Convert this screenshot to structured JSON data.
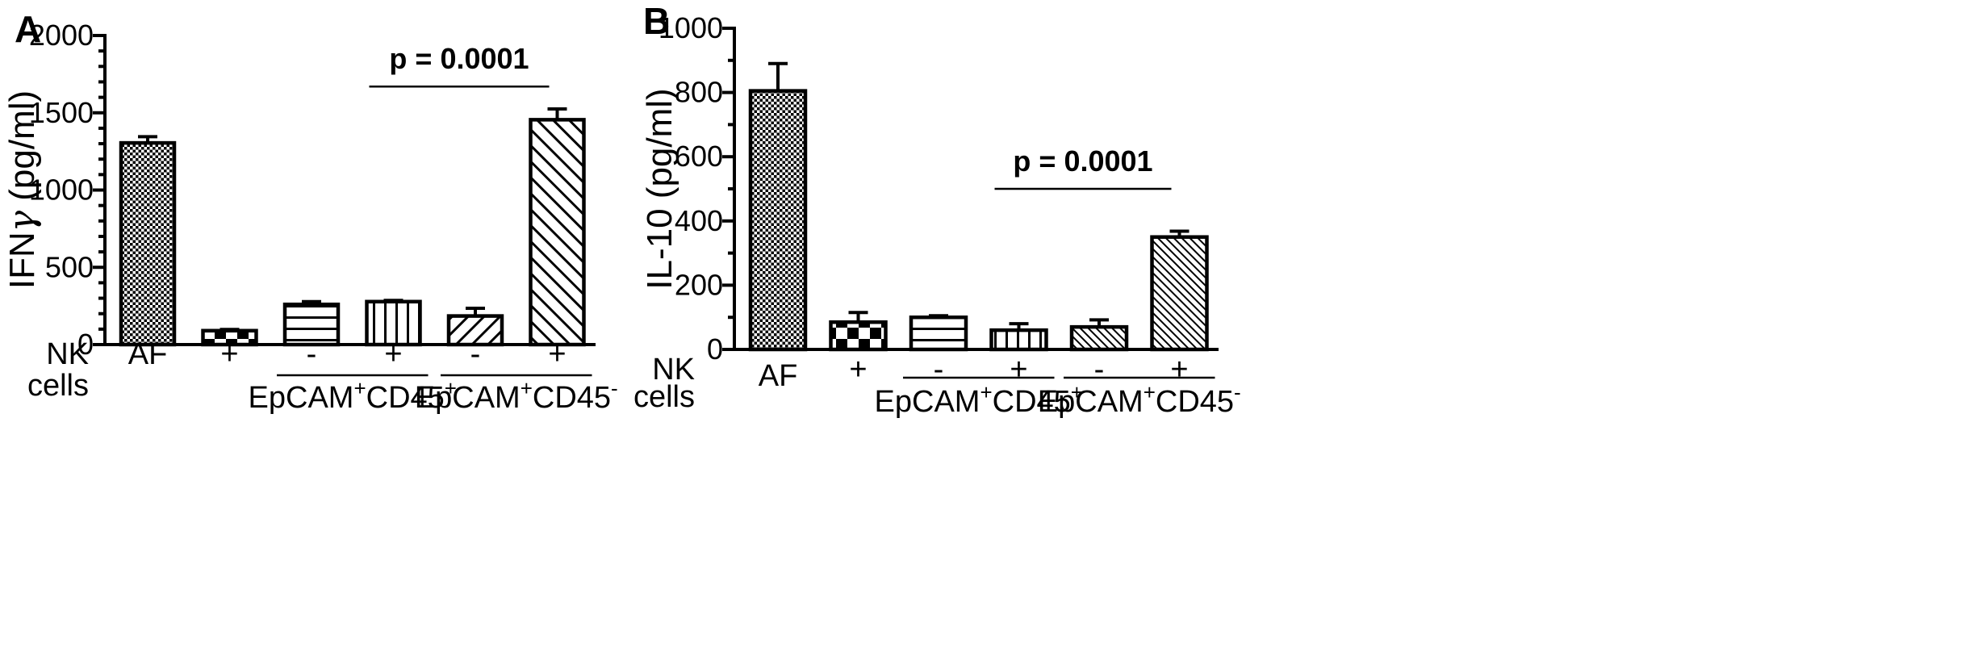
{
  "chart_data": [
    {
      "type": "bar",
      "panel": "A",
      "ylabel_main": "IFN",
      "ylabel_greek": "γ",
      "ylabel_unit": " (pg/ml)",
      "ylim": [
        0,
        2000
      ],
      "yticks": [
        0,
        500,
        1000,
        1500,
        2000
      ],
      "categories": [
        "AF",
        "+",
        "-",
        "+",
        "-",
        "+"
      ],
      "values": [
        1305,
        90,
        260,
        278,
        185,
        1455
      ],
      "errors": [
        40,
        8,
        18,
        8,
        50,
        70
      ],
      "patterns": [
        "crosshatch",
        "checker",
        "hlines",
        "vlines",
        "diag-right",
        "diag-left"
      ],
      "row_label_1": "NK",
      "row_label_2": "cells",
      "groups": [
        {
          "label": "EpCAM",
          "sup1": "+",
          "mid": "CD45",
          "sup2": "+",
          "bars": [
            2,
            3
          ]
        },
        {
          "label": "EpCAM",
          "sup1": "+",
          "mid": "CD45",
          "sup2": "-",
          "bars": [
            4,
            5
          ]
        }
      ],
      "annotation": {
        "text": "p = 0.0001",
        "from_bar": 3,
        "to_bar": 5,
        "y": 1670
      }
    },
    {
      "type": "bar",
      "panel": "B",
      "ylabel_main": "IL-10 (pg/ml)",
      "ylim": [
        0,
        1000
      ],
      "yticks": [
        0,
        200,
        400,
        600,
        800,
        1000
      ],
      "categories": [
        "AF",
        "+",
        "-",
        "+",
        "-",
        "+"
      ],
      "values": [
        805,
        85,
        100,
        60,
        70,
        350
      ],
      "errors": [
        85,
        30,
        5,
        20,
        22,
        18
      ],
      "patterns": [
        "crosshatch",
        "checker",
        "hlines",
        "vlines",
        "diag-fine",
        "diag-fine"
      ],
      "row_label_1": "NK",
      "row_label_2": "cells",
      "groups": [
        {
          "label": "EpCAM",
          "sup1": "+",
          "mid": "CD45",
          "sup2": "+",
          "bars": [
            2,
            3
          ]
        },
        {
          "label": "EpCAM",
          "sup1": "+",
          "mid": "CD45",
          "sup2": "-",
          "bars": [
            4,
            5
          ]
        }
      ],
      "annotation": {
        "text": "p = 0.0001",
        "from_bar": 3,
        "to_bar": 5,
        "y": 500
      }
    }
  ]
}
